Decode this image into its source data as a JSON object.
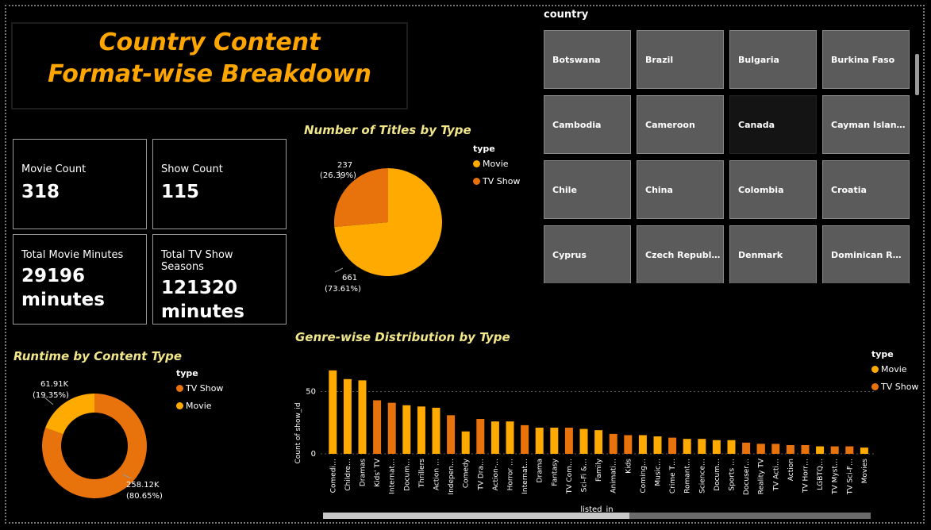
{
  "header": {
    "title_line1": "Country Content",
    "title_line2": "Format-wise Breakdown"
  },
  "cards": {
    "movie_count": {
      "label": "Movie Count",
      "value": "318"
    },
    "show_count": {
      "label": "Show Count",
      "value": "115"
    },
    "movie_minutes": {
      "label": "Total Movie Minutes",
      "value_line1": "29196",
      "value_line2": "minutes"
    },
    "show_seasons": {
      "label": "Total TV Show Seasons",
      "value_line1": "121320",
      "value_line2": "minutes"
    }
  },
  "colors": {
    "movie": "#FFAA00",
    "tv_show": "#E8720C",
    "title": "#FFA500",
    "section": "#F2E68A"
  },
  "pie": {
    "title": "Number of Titles by Type",
    "legend_title": "type",
    "legend": [
      "Movie",
      "TV Show"
    ],
    "movie_label": "661",
    "movie_pct": "(73.61%)",
    "tv_label": "237",
    "tv_pct": "(26.39%)"
  },
  "donut": {
    "title": "Runtime by Content Type",
    "legend_title": "type",
    "legend": [
      "TV Show",
      "Movie"
    ],
    "tv_label": "258.12K",
    "tv_pct": "(80.65%)",
    "movie_label": "61.91K",
    "movie_pct": "(19.35%)"
  },
  "slicer": {
    "title": "country",
    "items": [
      "Botswana",
      "Brazil",
      "Bulgaria",
      "Burkina Faso",
      "Cambodia",
      "Cameroon",
      "Canada",
      "Cayman Islan…",
      "Chile",
      "China",
      "Colombia",
      "Croatia",
      "Cyprus",
      "Czech Republ…",
      "Denmark",
      "Dominican R…"
    ],
    "selected": "Canada"
  },
  "genre": {
    "title": "Genre-wise Distribution by Type",
    "legend_title": "type",
    "legend": [
      "Movie",
      "TV Show"
    ],
    "ylabel": "Count of show_id",
    "xlabel": "listed_in"
  },
  "chart_data": [
    {
      "type": "pie",
      "title": "Number of Titles by Type",
      "categories": [
        "Movie",
        "TV Show"
      ],
      "values": [
        661,
        237
      ],
      "percents": [
        73.61,
        26.39
      ]
    },
    {
      "type": "pie",
      "title": "Runtime by Content Type",
      "categories": [
        "TV Show",
        "Movie"
      ],
      "values": [
        258120,
        61910
      ],
      "percents": [
        80.65,
        19.35
      ]
    },
    {
      "type": "area",
      "title": "Genre-wise Distribution by Type",
      "xlabel": "listed_in",
      "ylabel": "Count of show_id",
      "yticks": [
        0,
        50
      ],
      "categories": [
        "Comedi…",
        "Childre…",
        "Dramas",
        "Kids' TV",
        "Internat…",
        "Docum…",
        "Thrillers",
        "Action …",
        "Indepen…",
        "Comedy",
        "TV Dra…",
        "Action-…",
        "Horror …",
        "Internat…",
        "Drama",
        "Fantasy",
        "TV Com…",
        "Sci-Fi &…",
        "Family",
        "Animati…",
        "Kids",
        "Coming…",
        "Music…",
        "Crime T…",
        "Romant…",
        "Science…",
        "Docum…",
        "Sports …",
        "Docuser…",
        "Reality TV",
        "TV Acti…",
        "Action",
        "TV Horr…",
        "LGBTQ…",
        "TV Myst…",
        "TV Sci-F…",
        "Movies"
      ],
      "series": [
        {
          "name": "Movie",
          "values": [
            67,
            60,
            59,
            0,
            0,
            39,
            38,
            37,
            0,
            18,
            0,
            26,
            26,
            0,
            21,
            21,
            0,
            20,
            19,
            0,
            0,
            15,
            14,
            0,
            12,
            12,
            11,
            11,
            0,
            8,
            0,
            0,
            0,
            6,
            0,
            0,
            5
          ]
        },
        {
          "name": "TV Show",
          "values": [
            0,
            0,
            0,
            43,
            41,
            0,
            0,
            0,
            31,
            0,
            28,
            0,
            0,
            23,
            0,
            0,
            21,
            0,
            0,
            16,
            15,
            0,
            0,
            13,
            0,
            0,
            0,
            0,
            9,
            8,
            8,
            7,
            7,
            0,
            6,
            6,
            0
          ]
        }
      ]
    }
  ]
}
